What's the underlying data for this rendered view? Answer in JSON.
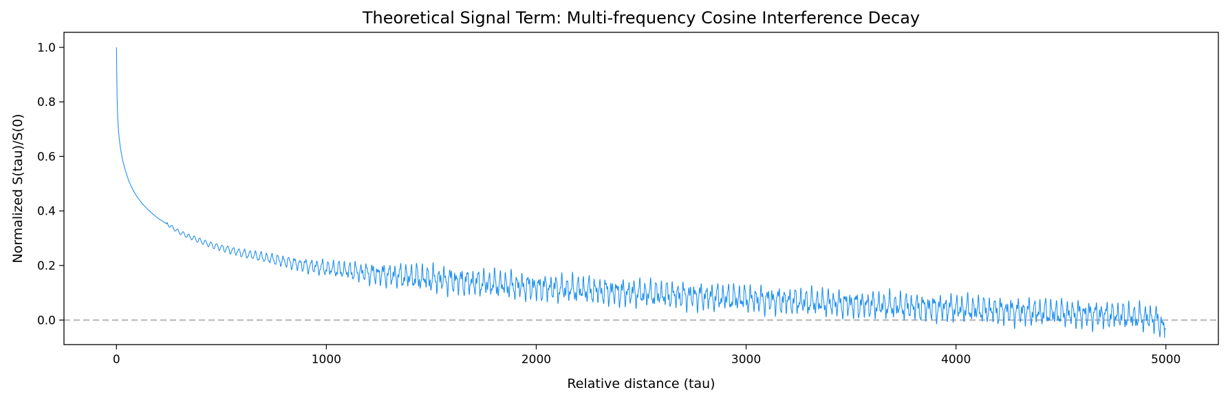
{
  "chart_data": {
    "type": "line",
    "title": "Theoretical Signal Term: Multi-frequency Cosine Interference Decay",
    "xlabel": "Relative distance (tau)",
    "ylabel": "Normalized S(tau)/S(0)",
    "xlim": [
      -250,
      5250
    ],
    "ylim": [
      -0.09,
      1.055
    ],
    "xticks": [
      0,
      1000,
      2000,
      3000,
      4000,
      5000
    ],
    "xtick_labels": [
      "0",
      "1000",
      "2000",
      "3000",
      "4000",
      "5000"
    ],
    "yticks": [
      0.0,
      0.2,
      0.4,
      0.6,
      0.8,
      1.0
    ],
    "ytick_labels": [
      "0.0",
      "0.2",
      "0.4",
      "0.6",
      "0.8",
      "1.0"
    ],
    "grid": false,
    "legend": "none",
    "series": [
      {
        "color": "#1f8fef",
        "x": [
          0,
          3,
          6,
          10,
          15,
          20,
          30,
          40,
          50,
          60,
          80,
          100,
          125,
          150,
          175,
          200,
          225,
          250,
          275,
          300,
          350,
          400,
          450,
          500,
          600,
          700,
          800,
          900,
          1000,
          1200,
          1400,
          1600,
          1800,
          2000,
          2200,
          2400,
          2600,
          2800,
          3000,
          3200,
          3400,
          3600,
          3800,
          4000,
          4200,
          4400,
          4600,
          4800,
          4950,
          5000
        ],
        "y": [
          1.0,
          0.82,
          0.74,
          0.69,
          0.655,
          0.625,
          0.585,
          0.555,
          0.53,
          0.508,
          0.475,
          0.45,
          0.425,
          0.405,
          0.388,
          0.372,
          0.36,
          0.348,
          0.335,
          0.322,
          0.305,
          0.29,
          0.276,
          0.265,
          0.245,
          0.23,
          0.215,
          0.2,
          0.19,
          0.172,
          0.158,
          0.145,
          0.132,
          0.12,
          0.112,
          0.102,
          0.094,
          0.086,
          0.078,
          0.07,
          0.062,
          0.055,
          0.048,
          0.043,
          0.035,
          0.028,
          0.022,
          0.015,
          0.005,
          -0.035
        ]
      }
    ],
    "reference_line": {
      "y": 0.0,
      "style": "dashed",
      "color": "#b3b3b3"
    },
    "oscillation_onset": 240
  }
}
